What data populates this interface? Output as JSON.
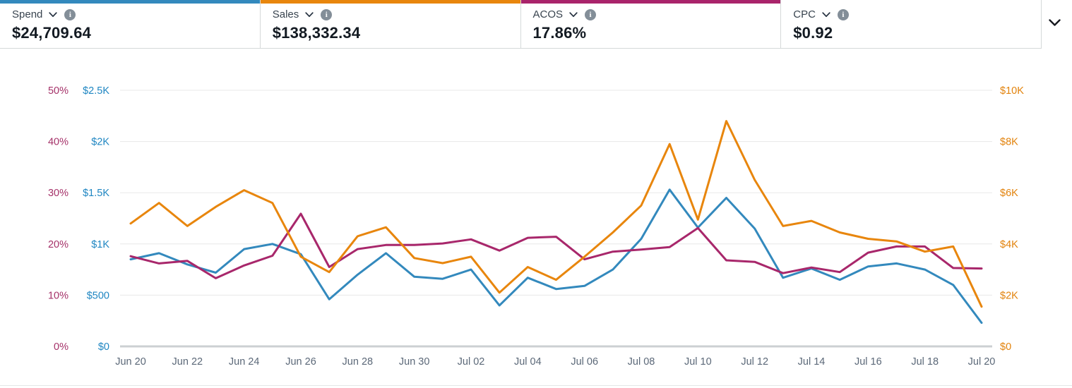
{
  "metric_cards": [
    {
      "label": "Spend",
      "value": "$24,709.64",
      "accent": "#3389bd"
    },
    {
      "label": "Sales",
      "value": "$138,332.34",
      "accent": "#e8860d"
    },
    {
      "label": "ACOS",
      "value": "17.86%",
      "accent": "#a9246b"
    },
    {
      "label": "CPC",
      "value": "$0.92",
      "accent": "transparent"
    }
  ],
  "icons": {
    "info_glyph": "i",
    "dropdown_icon": "chevron-down",
    "collapse_icon": "chevron-down"
  },
  "chart_data": {
    "type": "line",
    "grid": true,
    "legend": "none",
    "x": [
      "Jun 20",
      "Jun 21",
      "Jun 22",
      "Jun 23",
      "Jun 24",
      "Jun 25",
      "Jun 26",
      "Jun 27",
      "Jun 28",
      "Jun 29",
      "Jun 30",
      "Jul 01",
      "Jul 02",
      "Jul 03",
      "Jul 04",
      "Jul 05",
      "Jul 06",
      "Jul 07",
      "Jul 08",
      "Jul 09",
      "Jul 10",
      "Jul 11",
      "Jul 12",
      "Jul 13",
      "Jul 14",
      "Jul 15",
      "Jul 16",
      "Jul 17",
      "Jul 18",
      "Jul 19",
      "Jul 20"
    ],
    "x_tick_labels": [
      "Jun 20",
      "Jun 22",
      "Jun 24",
      "Jun 26",
      "Jun 28",
      "Jun 30",
      "Jul 02",
      "Jul 04",
      "Jul 06",
      "Jul 08",
      "Jul 10",
      "Jul 12",
      "Jul 14",
      "Jul 16",
      "Jul 18",
      "Jul 20"
    ],
    "axes": {
      "left_percent": {
        "ticks": [
          "0%",
          "10%",
          "20%",
          "30%",
          "40%",
          "50%"
        ],
        "min": 0,
        "max": 50,
        "color": "#a53269"
      },
      "left_dollar": {
        "ticks": [
          "$0",
          "$500",
          "$1K",
          "$1.5K",
          "$2K",
          "$2.5K"
        ],
        "min": 0,
        "max": 2500,
        "color": "#1f86c2"
      },
      "right_dollar": {
        "ticks": [
          "$0",
          "$2K",
          "$4K",
          "$6K",
          "$8K",
          "$10K"
        ],
        "min": 0,
        "max": 10000,
        "color": "#e2820b"
      }
    },
    "series": [
      {
        "name": "Spend",
        "axis": "left_dollar",
        "color": "#3389bd",
        "values": [
          850,
          910,
          800,
          720,
          950,
          1000,
          900,
          460,
          700,
          910,
          680,
          660,
          750,
          400,
          670,
          560,
          590,
          750,
          1050,
          1530,
          1160,
          1450,
          1150,
          670,
          760,
          650,
          780,
          810,
          750,
          600,
          230
        ]
      },
      {
        "name": "Sales",
        "axis": "right_dollar",
        "color": "#e8860d",
        "values": [
          4800,
          5600,
          4700,
          5450,
          6100,
          5600,
          3500,
          2900,
          4300,
          4650,
          3450,
          3250,
          3500,
          2100,
          3100,
          2600,
          3500,
          4450,
          5500,
          7900,
          4950,
          8800,
          6500,
          4700,
          4900,
          4450,
          4200,
          4100,
          3700,
          3900,
          1550
        ]
      },
      {
        "name": "ACOS",
        "axis": "left_percent",
        "color": "#a8276b",
        "values": [
          17.6,
          16.2,
          16.7,
          13.3,
          15.8,
          17.7,
          25.9,
          15.5,
          19.0,
          19.8,
          19.8,
          20.1,
          20.9,
          18.7,
          21.2,
          21.4,
          17.0,
          18.5,
          18.9,
          19.4,
          23.1,
          16.8,
          16.5,
          14.3,
          15.4,
          14.5,
          18.3,
          19.5,
          19.5,
          15.3,
          15.2
        ]
      }
    ]
  }
}
